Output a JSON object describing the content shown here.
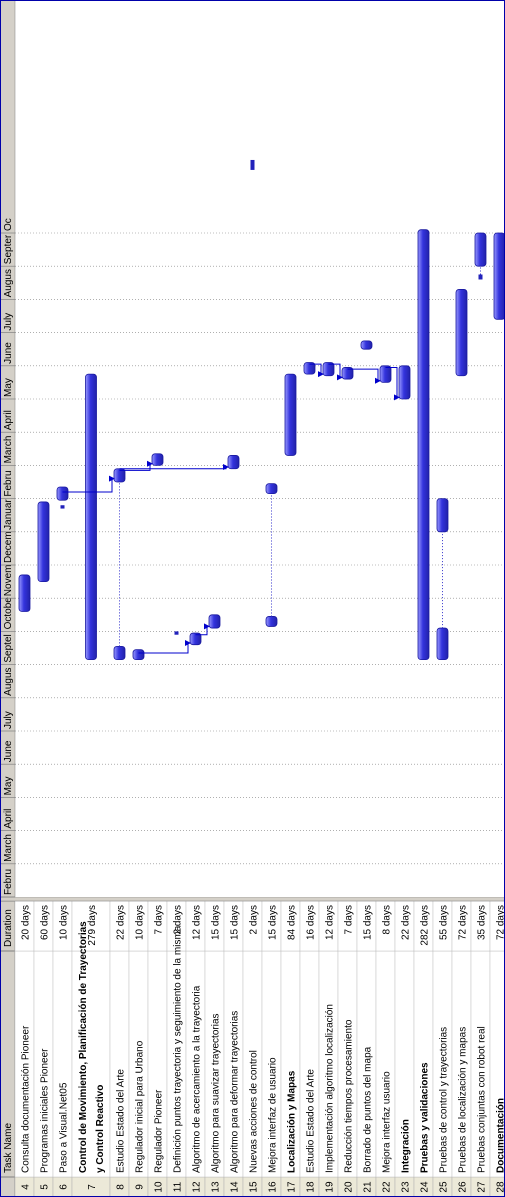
{
  "columns": {
    "id": "",
    "name": "Task Name",
    "duration": "Duration"
  },
  "months": [
    "Febru",
    "March",
    "April",
    "May",
    "June",
    "July",
    "Augus",
    "Septel",
    "Octobe",
    "Novem",
    "Decem",
    "Januar",
    "Febru",
    "March",
    "April",
    "May",
    "June",
    "July",
    "Augus",
    "Septer",
    "Oc"
  ],
  "rows": [
    {
      "id": "4",
      "name": "Consulta documentación Pioneer",
      "duration": "20 days",
      "bold": false
    },
    {
      "id": "5",
      "name": "Programas iniciales Pioneer",
      "duration": "60 days",
      "bold": false
    },
    {
      "id": "6",
      "name": "Paso a Visual.Net05",
      "duration": "10 days",
      "bold": false
    },
    {
      "id": "7",
      "name": "Control de Movimiento, Planificación de Trayectorias",
      "name2": "y Control Reactivo",
      "duration": "279 days",
      "bold": true
    },
    {
      "id": "8",
      "name": "Estudio Estado del Arte",
      "duration": "22 days",
      "bold": false
    },
    {
      "id": "9",
      "name": "Regulador inicial para Urbano",
      "duration": "10 days",
      "bold": false
    },
    {
      "id": "10",
      "name": "Regulador Pioneer",
      "duration": "7 days",
      "bold": false
    },
    {
      "id": "11",
      "name": "Definición puntos trayectoria y seguimiento de la misma",
      "duration": "2 days",
      "bold": false
    },
    {
      "id": "12",
      "name": "Algoritmo de acercamiento a la trayectoria",
      "duration": "12 days",
      "bold": false
    },
    {
      "id": "13",
      "name": "Algoritmo para suavizar trayectorias",
      "duration": "15 days",
      "bold": false
    },
    {
      "id": "14",
      "name": "Algoritmo para deformar trayectorias",
      "duration": "15 days",
      "bold": false
    },
    {
      "id": "15",
      "name": "Nuevas acciones de control",
      "duration": "2 days",
      "bold": false
    },
    {
      "id": "16",
      "name": "Mejora interfaz de usuario",
      "duration": "15 days",
      "bold": false
    },
    {
      "id": "17",
      "name": "Localización y Mapas",
      "duration": "84 days",
      "bold": true
    },
    {
      "id": "18",
      "name": "Estudio Estado del Arte",
      "duration": "16 days",
      "bold": false
    },
    {
      "id": "19",
      "name": "Implementación algoritmo localización",
      "duration": "12 days",
      "bold": false
    },
    {
      "id": "20",
      "name": "Reducción tiempos procesamiento",
      "duration": "7 days",
      "bold": false
    },
    {
      "id": "21",
      "name": "Borrado de puntos del mapa",
      "duration": "15 days",
      "bold": false
    },
    {
      "id": "22",
      "name": "Mejora interfaz usuario",
      "duration": "8 days",
      "bold": false
    },
    {
      "id": "23",
      "name": "Integración",
      "duration": "22 days",
      "bold": true
    },
    {
      "id": "24",
      "name": "Pruebas y validaciones",
      "duration": "282 days",
      "bold": true
    },
    {
      "id": "25",
      "name": "Pruebas de control y trayectorias",
      "duration": "55 days",
      "bold": false
    },
    {
      "id": "26",
      "name": "Pruebas de localización y mapas",
      "duration": "72 days",
      "bold": false
    },
    {
      "id": "27",
      "name": "Pruebas conjuntas con robot real",
      "duration": "35 days",
      "bold": false
    },
    {
      "id": "28",
      "name": "Documentación",
      "duration": "72 days",
      "bold": true
    }
  ],
  "colors": {
    "bar": "#3333dd",
    "bar_hi": "#9a9aff",
    "grid": "#808080",
    "header_bg": "#d4d0c8",
    "id_bg": "#ece9d8",
    "link": "#0000cc"
  }
}
